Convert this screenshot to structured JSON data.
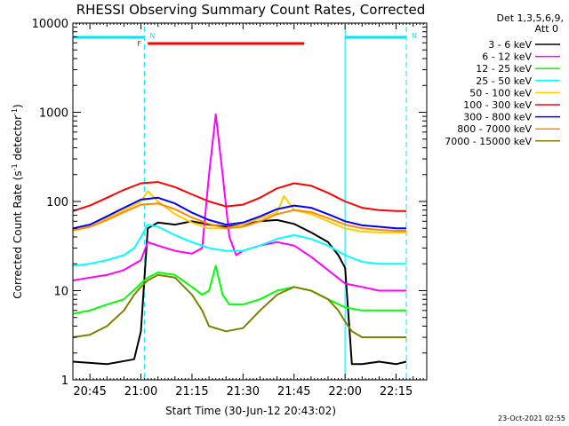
{
  "chart_data": {
    "type": "line",
    "title": "RHESSI Observing Summary Count Rates, Corrected",
    "xlabel": "Start Time (30-Jun-12 20:43:02)",
    "ylabel_main": "Corrected Count Rate (s",
    "ylabel_sup1": "-1",
    "ylabel_mid": " detector",
    "ylabel_sup2": "-1",
    "ylabel_end": ")",
    "y_scale": "log",
    "xlim": [
      "20:40",
      "22:24"
    ],
    "ylim": [
      1,
      10000
    ],
    "x_ticks": [
      "20:45",
      "21:00",
      "21:15",
      "21:30",
      "21:45",
      "22:00",
      "22:15"
    ],
    "x_tick_minutes": [
      45,
      60,
      75,
      90,
      105,
      120,
      135
    ],
    "y_ticks": [
      {
        "label": "1",
        "value": 1
      },
      {
        "label": "10",
        "value": 10
      },
      {
        "label": "100",
        "value": 100
      },
      {
        "label": "1000",
        "value": 1000
      },
      {
        "label": "10000",
        "value": 10000
      }
    ],
    "legend_header": [
      "Det 1,3,5,6,9,",
      "Att 0"
    ],
    "legend_position": "right",
    "grid": false,
    "annotations": {
      "night_markers": [
        "N",
        "N"
      ],
      "flare_marker": "F",
      "footer": "23-Oct-2021 02:55"
    },
    "night_intervals_minutes": [
      [
        40,
        61
      ],
      [
        120,
        138
      ]
    ],
    "flare_interval_minutes": [
      62,
      108
    ],
    "series": [
      {
        "name": "3 - 6 keV",
        "color": "#000000",
        "x": [
          40,
          50,
          58,
          60,
          62,
          65,
          70,
          75,
          80,
          85,
          90,
          95,
          100,
          105,
          110,
          115,
          118,
          120,
          122,
          125,
          130,
          135,
          138
        ],
        "y": [
          1.6,
          1.5,
          1.7,
          3.5,
          50,
          58,
          55,
          60,
          55,
          52,
          55,
          60,
          62,
          56,
          45,
          35,
          25,
          18,
          1.5,
          1.5,
          1.6,
          1.5,
          1.6
        ]
      },
      {
        "name": "6 - 12 keV",
        "color": "#ff00ff",
        "x": [
          40,
          45,
          50,
          55,
          60,
          62,
          65,
          70,
          75,
          78,
          80,
          82,
          84,
          86,
          88,
          90,
          95,
          100,
          105,
          110,
          115,
          120,
          125,
          130,
          135,
          138
        ],
        "y": [
          13,
          14,
          15,
          17,
          22,
          35,
          32,
          28,
          26,
          30,
          200,
          950,
          200,
          40,
          25,
          28,
          32,
          35,
          32,
          24,
          17,
          12,
          11,
          10,
          10,
          10
        ]
      },
      {
        "name": "12 - 25 keV",
        "color": "#00ff00",
        "x": [
          40,
          45,
          50,
          55,
          60,
          62,
          65,
          70,
          75,
          78,
          80,
          82,
          84,
          86,
          90,
          95,
          100,
          105,
          110,
          115,
          120,
          125,
          130,
          135,
          138
        ],
        "y": [
          5.5,
          6,
          7,
          8,
          12,
          14,
          16,
          15,
          11,
          9,
          10,
          19,
          9,
          7,
          7,
          8,
          10,
          11,
          10,
          8,
          6.5,
          6,
          6,
          6,
          6
        ]
      },
      {
        "name": "25 - 50 keV",
        "color": "#00ffff",
        "x": [
          40,
          45,
          50,
          55,
          58,
          60,
          62,
          65,
          70,
          75,
          80,
          85,
          90,
          95,
          100,
          105,
          110,
          115,
          120,
          125,
          130,
          135,
          138
        ],
        "y": [
          19,
          20,
          22,
          25,
          30,
          40,
          55,
          52,
          42,
          35,
          30,
          28,
          28,
          32,
          38,
          42,
          38,
          32,
          25,
          21,
          20,
          20,
          20
        ]
      },
      {
        "name": "50 - 100 keV",
        "color": "#ffcc00",
        "x": [
          40,
          45,
          50,
          55,
          60,
          62,
          65,
          70,
          75,
          80,
          85,
          90,
          95,
          100,
          102,
          105,
          110,
          115,
          120,
          125,
          130,
          135,
          138
        ],
        "y": [
          47,
          52,
          65,
          80,
          100,
          130,
          100,
          72,
          58,
          50,
          50,
          55,
          65,
          75,
          115,
          80,
          72,
          60,
          50,
          46,
          45,
          45,
          45
        ]
      },
      {
        "name": "100 - 300 keV",
        "color": "#ff0000",
        "x": [
          40,
          45,
          50,
          55,
          60,
          65,
          70,
          75,
          80,
          85,
          90,
          95,
          100,
          105,
          110,
          115,
          120,
          125,
          130,
          135,
          138
        ],
        "y": [
          78,
          90,
          110,
          135,
          160,
          165,
          145,
          120,
          100,
          88,
          92,
          110,
          140,
          160,
          150,
          125,
          100,
          85,
          80,
          78,
          78
        ]
      },
      {
        "name": "300 - 800 keV",
        "color": "#0000ff",
        "x": [
          40,
          45,
          50,
          55,
          60,
          65,
          70,
          75,
          80,
          85,
          90,
          95,
          100,
          105,
          110,
          115,
          120,
          125,
          130,
          135,
          138
        ],
        "y": [
          50,
          55,
          68,
          85,
          105,
          110,
          95,
          75,
          62,
          55,
          58,
          68,
          82,
          90,
          85,
          72,
          60,
          54,
          52,
          50,
          50
        ]
      },
      {
        "name": "800 - 7000 keV",
        "color": "#ff8800",
        "x": [
          40,
          45,
          50,
          55,
          60,
          65,
          70,
          75,
          80,
          85,
          90,
          95,
          100,
          105,
          110,
          115,
          120,
          125,
          130,
          135,
          138
        ],
        "y": [
          48,
          52,
          62,
          76,
          92,
          95,
          82,
          66,
          56,
          50,
          52,
          60,
          72,
          80,
          76,
          65,
          55,
          50,
          48,
          47,
          47
        ]
      },
      {
        "name": "7000 - 15000 keV",
        "color": "#808000",
        "x": [
          40,
          45,
          50,
          55,
          58,
          60,
          62,
          65,
          70,
          75,
          78,
          80,
          85,
          90,
          95,
          100,
          105,
          110,
          115,
          118,
          120,
          122,
          125,
          130,
          135,
          138
        ],
        "y": [
          3,
          3.2,
          4,
          6,
          9,
          11,
          13,
          15,
          14,
          9,
          6,
          4,
          3.5,
          3.8,
          6,
          9,
          11,
          10,
          8,
          6,
          4.5,
          3.5,
          3,
          3,
          3,
          3
        ]
      }
    ]
  }
}
